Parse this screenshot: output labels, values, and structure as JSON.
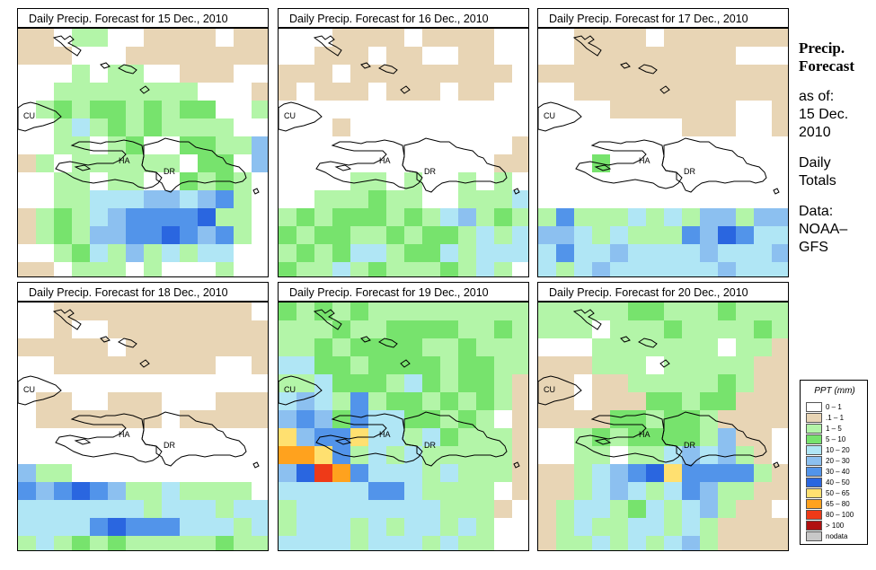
{
  "panels": [
    {
      "title": "Daily Precip. Forecast for  15 Dec., 2010"
    },
    {
      "title": "Daily Precip. Forecast for  16 Dec., 2010"
    },
    {
      "title": "Daily Precip. Forecast for  17 Dec., 2010"
    },
    {
      "title": "Daily Precip. Forecast for  18 Dec., 2010"
    },
    {
      "title": "Daily Precip. Forecast for  19 Dec., 2010"
    },
    {
      "title": "Daily Precip. Forecast for  20 Dec., 2010"
    }
  ],
  "map_labels": {
    "cuba": "CU",
    "haiti": "HA",
    "dominican_republic": "DR"
  },
  "info": {
    "line1": "Precip.",
    "line2": "Forecast",
    "line3": "as of:",
    "line4": "15 Dec.",
    "line5": "2010",
    "line6": "Daily",
    "line7": "Totals",
    "line8": "Data:",
    "line9": "NOAA–",
    "line10": "GFS"
  },
  "legend": {
    "title": "PPT (mm)",
    "items": [
      {
        "label": "0 – 1",
        "color": "#ffffff"
      },
      {
        "label": ".1 – 1",
        "color": "#e8d5b5"
      },
      {
        "label": "1 – 5",
        "color": "#b3f5a8"
      },
      {
        "label": "5 – 10",
        "color": "#77e36d"
      },
      {
        "label": "10 – 20",
        "color": "#b0e6f5"
      },
      {
        "label": "20 – 30",
        "color": "#8cc0f0"
      },
      {
        "label": "30 – 40",
        "color": "#5294ea"
      },
      {
        "label": "40 – 50",
        "color": "#2a66e0"
      },
      {
        "label": "50 – 65",
        "color": "#ffe070"
      },
      {
        "label": "65 – 80",
        "color": "#ffa21e"
      },
      {
        "label": "80 – 100",
        "color": "#ee3a18"
      },
      {
        "label": "> 100",
        "color": "#b01010"
      },
      {
        "label": "nodata",
        "color": "#c8c8c8"
      }
    ]
  },
  "colors": {
    "none": "#ffffff",
    "trace": "#e8d5b5",
    "light_green": "#b3f5a8",
    "green": "#77e36d",
    "light_blue": "#b0e6f5",
    "blue1": "#8cc0f0",
    "blue2": "#5294ea",
    "blue3": "#2a66e0",
    "yellow": "#ffe070",
    "orange": "#ffa21e",
    "red": "#ee3a18"
  }
}
